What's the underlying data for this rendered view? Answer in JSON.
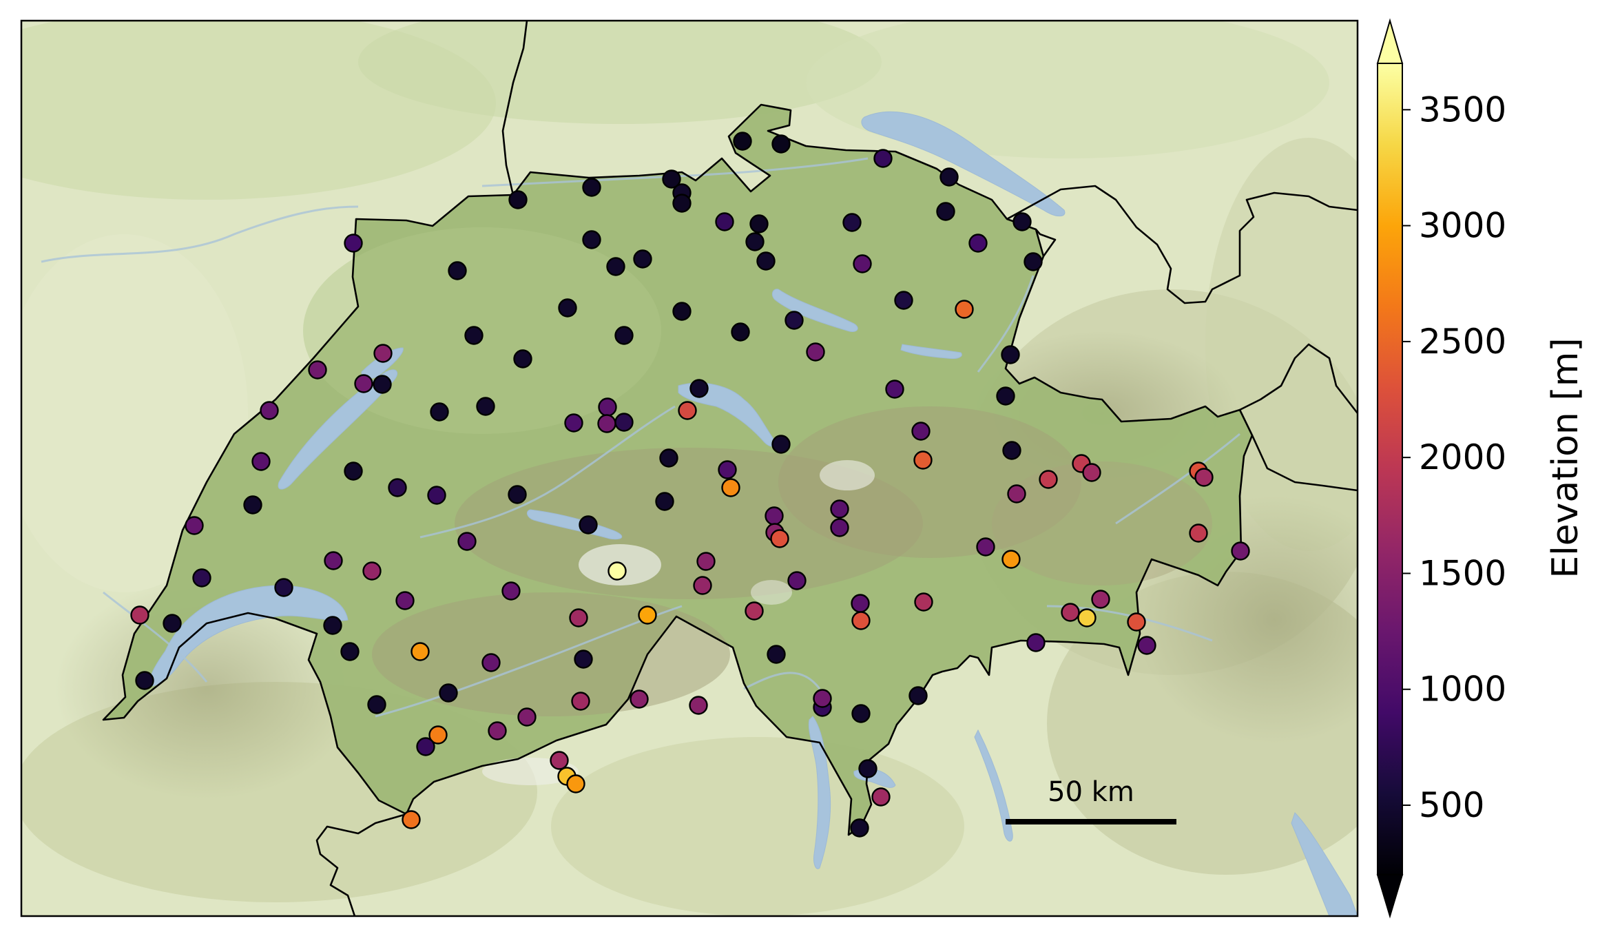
{
  "scale_bar": {
    "label": "50 km"
  },
  "colorbar": {
    "label": "Elevation [m]",
    "colormap": "inferno",
    "range": [
      200,
      3700
    ],
    "extend": "both",
    "ticks": [
      {
        "value": 500,
        "label": "500"
      },
      {
        "value": 1000,
        "label": "1000"
      },
      {
        "value": 1500,
        "label": "1500"
      },
      {
        "value": 2000,
        "label": "2000"
      },
      {
        "value": 2500,
        "label": "2500"
      },
      {
        "value": 3000,
        "label": "3000"
      },
      {
        "value": 3500,
        "label": "3500"
      }
    ]
  },
  "colors": {
    "border": "#000000",
    "lake": "#a7c3dc",
    "land_base": "#dfe6c4",
    "swiss_relief": "#8fae6c"
  }
}
